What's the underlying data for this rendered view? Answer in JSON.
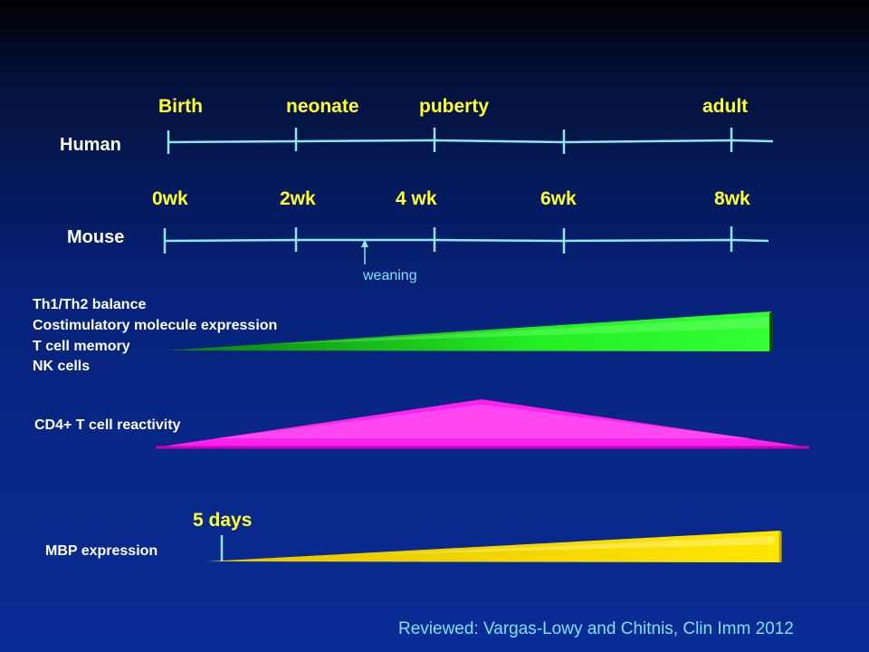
{
  "human": {
    "label": "Human",
    "milestones": [
      "Birth",
      "neonate",
      "puberty",
      "adult"
    ]
  },
  "mouse": {
    "label": "Mouse",
    "ages": [
      "0wk",
      "2wk",
      "4 wk",
      "6wk",
      "8wk"
    ],
    "weaning": "weaning"
  },
  "bands": {
    "green_labels": [
      "Th1/Th2 balance",
      "Costimulatory molecule expression",
      "T cell memory",
      "NK cells"
    ],
    "pink_label": "CD4+ T cell reactivity",
    "mbp_label": "MBP expression",
    "mbp_start": "5 days"
  },
  "colors": {
    "timeline": "#8fe6ef",
    "milestone_text": "#ffff33",
    "green_band": "#22ee22",
    "pink_band": "#ff33ee",
    "yellow_band": "#ffdd00"
  },
  "citation": "Reviewed: Vargas-Lowy and Chitnis, Clin Imm 2012"
}
